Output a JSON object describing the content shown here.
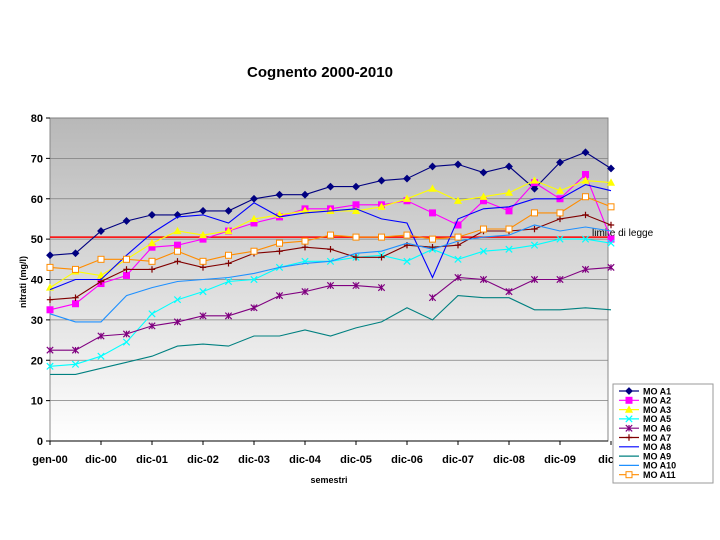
{
  "chart_data": {
    "type": "line",
    "title": "Cognento 2000-2010",
    "xlabel": "semestri",
    "ylabel": "nitrati (mg/l)",
    "ylim": [
      0,
      80
    ],
    "yticks": [
      "0",
      "10",
      "20",
      "30",
      "40",
      "50",
      "60",
      "70",
      "80"
    ],
    "xtick_labels": [
      "gen-00",
      "dic-00",
      "dic-01",
      "dic-02",
      "dic-03",
      "dic-04",
      "dic-05",
      "dic-06",
      "dic-07",
      "dic-08",
      "dic-09",
      "dic-1"
    ],
    "xtick_positions": [
      0,
      2,
      4,
      6,
      8,
      10,
      12,
      14,
      16,
      18,
      20,
      22
    ],
    "grid": true,
    "legend_position": "bottom-right",
    "reference_line": {
      "value": 50.5,
      "label": "limite di legge",
      "color": "#ff0000"
    },
    "x": [
      0,
      1,
      2,
      3,
      4,
      5,
      6,
      7,
      8,
      9,
      10,
      11,
      12,
      13,
      14,
      15,
      16,
      17,
      18,
      19,
      20,
      21,
      22
    ],
    "series": [
      {
        "name": "MO A1",
        "color": "#000080",
        "marker": "diamond",
        "values": [
          46,
          46.5,
          52,
          54.5,
          56,
          56,
          57,
          57,
          60,
          61,
          61,
          63,
          63,
          64.5,
          65,
          68,
          68.5,
          66.5,
          68,
          62.5,
          69,
          71.5,
          67.5
        ]
      },
      {
        "name": "MO A2",
        "color": "#ff00ff",
        "marker": "square",
        "values": [
          32.5,
          34,
          39,
          41,
          48,
          48.5,
          50,
          52,
          54,
          55.5,
          57.5,
          57.5,
          58.5,
          58.5,
          59.5,
          56.5,
          53.5,
          59.5,
          57,
          64,
          60,
          66,
          50
        ]
      },
      {
        "name": "MO A3",
        "color": "#ffff00",
        "marker": "triangle",
        "values": [
          38,
          42,
          41,
          45,
          49,
          52,
          51,
          52,
          55,
          56,
          57,
          57,
          57,
          58,
          60,
          62.5,
          59.5,
          60.5,
          61.5,
          64.5,
          62,
          64.5,
          64
        ]
      },
      {
        "name": "MO A5",
        "color": "#00ffff",
        "marker": "x",
        "values": [
          18.5,
          19,
          21,
          24.5,
          31.5,
          35,
          37,
          39.5,
          40,
          43,
          44.5,
          44.5,
          45.5,
          46,
          44.5,
          47.5,
          45,
          47,
          47.5,
          48.5,
          50,
          50,
          49
        ]
      },
      {
        "name": "MO A6",
        "color": "#800080",
        "marker": "star",
        "values": [
          22.5,
          22.5,
          26,
          26.5,
          28.5,
          29.5,
          31,
          31,
          33,
          36,
          37,
          38.5,
          38.5,
          38,
          null,
          35.5,
          40.5,
          40,
          37,
          40,
          40,
          42.5,
          43
        ]
      },
      {
        "name": "MO A7",
        "color": "#800000",
        "marker": "plus",
        "values": [
          35,
          35.5,
          39.5,
          42.5,
          42.5,
          44.5,
          43,
          44,
          46.5,
          47,
          48,
          47.5,
          45.5,
          45.5,
          48.5,
          48,
          48.5,
          52,
          52,
          52.5,
          55,
          56,
          53.5
        ]
      },
      {
        "name": "MO A8",
        "color": "#0000ff",
        "marker": "none",
        "values": [
          37.5,
          40,
          40,
          46,
          51.5,
          55.5,
          56,
          54,
          59,
          55.5,
          56.5,
          57,
          57.5,
          55,
          54,
          40.5,
          55,
          57.5,
          58,
          60,
          60,
          63.5,
          62
        ]
      },
      {
        "name": "MO A9",
        "color": "#008080",
        "marker": "none",
        "values": [
          16.5,
          16.5,
          18,
          19.5,
          21,
          23.5,
          24,
          23.5,
          26,
          26,
          27.5,
          26,
          28,
          29.5,
          33,
          30,
          36,
          35.5,
          35.5,
          32.5,
          32.5,
          33,
          32.5
        ]
      },
      {
        "name": "MO A10",
        "color": "#1e90ff",
        "marker": "none",
        "values": [
          31.5,
          29.5,
          29.5,
          36,
          38,
          39.5,
          40,
          40.5,
          41.5,
          43,
          44,
          44.5,
          46.5,
          47,
          49,
          47.5,
          49.5,
          50.5,
          51,
          53.5,
          52,
          53,
          52
        ]
      },
      {
        "name": "MO A11",
        "color": "#ff8c00",
        "marker": "open-square",
        "values": [
          43,
          42.5,
          45,
          45,
          44.5,
          47,
          44.5,
          46,
          47,
          49,
          49.5,
          51,
          50.5,
          50.5,
          51,
          50,
          50.5,
          52.5,
          52.5,
          56.5,
          56.5,
          60.5,
          58
        ]
      }
    ]
  }
}
